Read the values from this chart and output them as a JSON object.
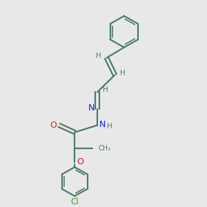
{
  "bg_color": "#e8e8e8",
  "bond_color": "#4a7a6a",
  "n_color": "#1a1aee",
  "o_color": "#cc2222",
  "cl_color": "#22aa22",
  "h_color": "#4a7a6a",
  "figsize": [
    3.0,
    3.0
  ],
  "dpi": 100,
  "xlim": [
    0,
    10
  ],
  "ylim": [
    0,
    10
  ]
}
